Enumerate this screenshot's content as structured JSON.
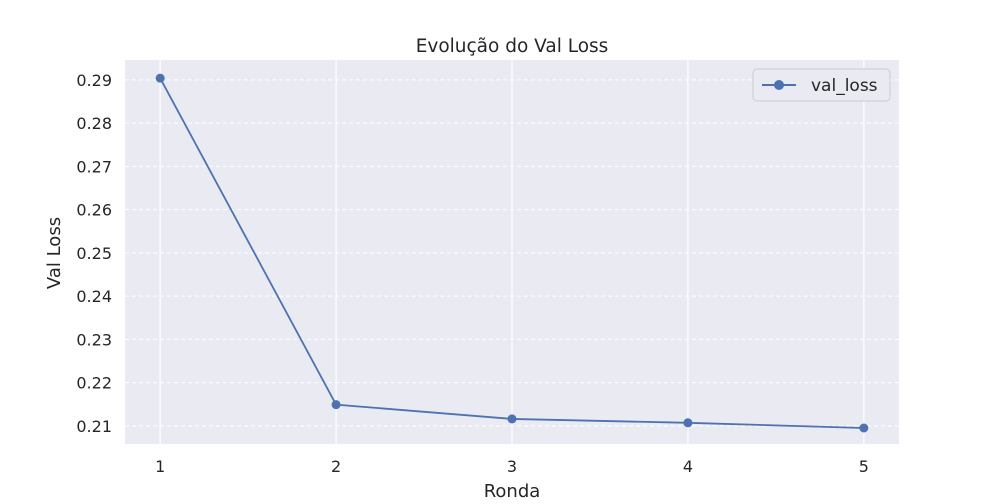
{
  "chart_data": {
    "type": "line",
    "title": "Evolução do Val Loss",
    "xlabel": "Ronda",
    "ylabel": "Val Loss",
    "x": [
      1,
      2,
      3,
      4,
      5
    ],
    "xticks": [
      "1",
      "2",
      "3",
      "4",
      "5"
    ],
    "yticks": [
      "0.21",
      "0.22",
      "0.23",
      "0.24",
      "0.25",
      "0.26",
      "0.27",
      "0.28",
      "0.29"
    ],
    "ytick_values": [
      0.21,
      0.22,
      0.23,
      0.24,
      0.25,
      0.26,
      0.27,
      0.28,
      0.29
    ],
    "xlim": [
      0.8,
      5.2
    ],
    "ylim": [
      0.2058,
      0.2946
    ],
    "series": [
      {
        "name": "val_loss",
        "values": [
          0.2904,
          0.2149,
          0.2116,
          0.2107,
          0.2095
        ],
        "color": "#4c72b0",
        "marker": "circle"
      }
    ],
    "legend": {
      "position": "top-right"
    },
    "grid": {
      "x": "solid",
      "y": "dashed"
    },
    "colors": {
      "plot_background": "#eaeaf2",
      "grid": "#ffffff",
      "text": "#262626"
    }
  }
}
